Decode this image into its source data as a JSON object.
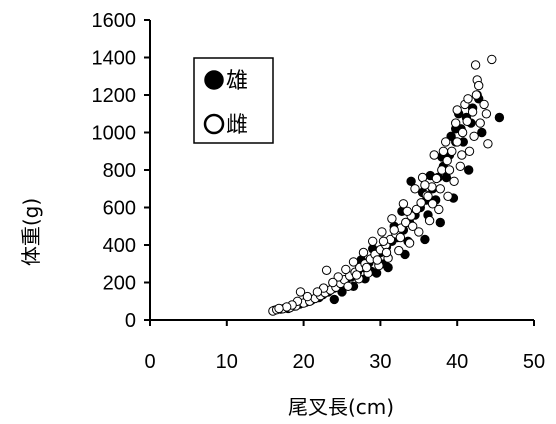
{
  "chart_data": {
    "type": "scatter",
    "xlabel": "尾叉長(cm)",
    "ylabel": "体重(g)",
    "xlim": [
      0,
      50
    ],
    "ylim": [
      0,
      1600
    ],
    "x_ticks": [
      0,
      10,
      20,
      30,
      40,
      50
    ],
    "y_ticks": [
      0,
      200,
      400,
      600,
      800,
      1000,
      1200,
      1400,
      1600
    ],
    "grid": false,
    "legend_position": "top-left",
    "series": [
      {
        "name": "雄",
        "marker": "filled-circle",
        "color": "#000000",
        "points": [
          [
            16.2,
            52
          ],
          [
            17.0,
            58
          ],
          [
            18.0,
            62
          ],
          [
            18.8,
            74
          ],
          [
            19.5,
            85
          ],
          [
            20.3,
            95
          ],
          [
            21.0,
            105
          ],
          [
            21.8,
            120
          ],
          [
            22.5,
            135
          ],
          [
            23.2,
            150
          ],
          [
            24.0,
            170
          ],
          [
            24.8,
            190
          ],
          [
            25.5,
            210
          ],
          [
            26.2,
            230
          ],
          [
            27.0,
            255
          ],
          [
            27.8,
            280
          ],
          [
            28.5,
            305
          ],
          [
            29.2,
            340
          ],
          [
            30.0,
            360
          ],
          [
            30.8,
            390
          ],
          [
            31.5,
            420
          ],
          [
            32.2,
            440
          ],
          [
            33.0,
            480
          ],
          [
            33.8,
            520
          ],
          [
            34.5,
            560
          ],
          [
            35.2,
            600
          ],
          [
            36.0,
            640
          ],
          [
            36.8,
            700
          ],
          [
            37.5,
            760
          ],
          [
            38.2,
            820
          ],
          [
            39.0,
            880
          ],
          [
            39.8,
            950
          ],
          [
            40.5,
            1020
          ],
          [
            41.2,
            1080
          ],
          [
            42.0,
            1130
          ],
          [
            42.8,
            1180
          ],
          [
            24.0,
            110
          ],
          [
            26.5,
            180
          ],
          [
            28.0,
            220
          ],
          [
            29.5,
            250
          ],
          [
            31.0,
            280
          ],
          [
            33.2,
            350
          ],
          [
            35.8,
            430
          ],
          [
            37.8,
            520
          ],
          [
            39.5,
            650
          ],
          [
            41.5,
            800
          ],
          [
            38.0,
            870
          ],
          [
            34.0,
            740
          ],
          [
            31.8,
            500
          ],
          [
            36.5,
            770
          ],
          [
            39.8,
            1020
          ],
          [
            43.2,
            1000
          ],
          [
            45.5,
            1080
          ],
          [
            40.2,
            1100
          ],
          [
            42.6,
            1200
          ],
          [
            29.0,
            380
          ],
          [
            27.5,
            320
          ],
          [
            32.8,
            580
          ],
          [
            35.5,
            680
          ],
          [
            37.2,
            640
          ],
          [
            40.8,
            950
          ],
          [
            38.6,
            760
          ],
          [
            30.5,
            300
          ],
          [
            25.0,
            150
          ],
          [
            22.0,
            120
          ],
          [
            41.8,
            1050
          ],
          [
            39.2,
            980
          ],
          [
            36.2,
            560
          ],
          [
            33.6,
            420
          ],
          [
            28.8,
            260
          ]
        ]
      },
      {
        "name": "雌",
        "marker": "open-circle",
        "color": "#000000",
        "points": [
          [
            16.0,
            48
          ],
          [
            16.5,
            55
          ],
          [
            17.3,
            60
          ],
          [
            18.2,
            65
          ],
          [
            19.0,
            75
          ],
          [
            19.6,
            150
          ],
          [
            20.0,
            90
          ],
          [
            20.8,
            100
          ],
          [
            21.5,
            115
          ],
          [
            22.2,
            130
          ],
          [
            22.8,
            145
          ],
          [
            23.0,
            265
          ],
          [
            23.5,
            160
          ],
          [
            24.2,
            175
          ],
          [
            24.8,
            195
          ],
          [
            25.3,
            215
          ],
          [
            26.0,
            235
          ],
          [
            26.7,
            255
          ],
          [
            27.3,
            280
          ],
          [
            28.0,
            300
          ],
          [
            28.7,
            325
          ],
          [
            29.3,
            350
          ],
          [
            30.0,
            375
          ],
          [
            30.7,
            400
          ],
          [
            31.3,
            430
          ],
          [
            32.0,
            460
          ],
          [
            32.7,
            490
          ],
          [
            33.3,
            520
          ],
          [
            34.0,
            555
          ],
          [
            34.7,
            590
          ],
          [
            35.3,
            625
          ],
          [
            36.0,
            665
          ],
          [
            36.7,
            710
          ],
          [
            37.3,
            755
          ],
          [
            38.0,
            800
          ],
          [
            38.7,
            850
          ],
          [
            39.3,
            900
          ],
          [
            40.0,
            950
          ],
          [
            40.7,
            1000
          ],
          [
            41.3,
            1060
          ],
          [
            42.0,
            1110
          ],
          [
            42.5,
            1200
          ],
          [
            42.6,
            1280
          ],
          [
            42.4,
            1360
          ],
          [
            44.5,
            1390
          ],
          [
            43.8,
            1100
          ],
          [
            44.0,
            940
          ],
          [
            41.0,
            1150
          ],
          [
            40.0,
            1120
          ],
          [
            38.5,
            950
          ],
          [
            37.0,
            880
          ],
          [
            35.5,
            760
          ],
          [
            34.5,
            700
          ],
          [
            33.0,
            620
          ],
          [
            31.5,
            540
          ],
          [
            30.2,
            470
          ],
          [
            29.0,
            420
          ],
          [
            27.8,
            360
          ],
          [
            26.5,
            310
          ],
          [
            25.5,
            270
          ],
          [
            24.5,
            230
          ],
          [
            23.8,
            200
          ],
          [
            22.6,
            170
          ],
          [
            21.8,
            150
          ],
          [
            20.5,
            125
          ],
          [
            19.2,
            100
          ],
          [
            18.5,
            80
          ],
          [
            17.8,
            70
          ],
          [
            16.8,
            62
          ],
          [
            25.8,
            180
          ],
          [
            27.2,
            220
          ],
          [
            28.4,
            250
          ],
          [
            29.8,
            290
          ],
          [
            31.0,
            330
          ],
          [
            32.4,
            370
          ],
          [
            33.8,
            410
          ],
          [
            35.0,
            470
          ],
          [
            36.4,
            530
          ],
          [
            37.6,
            590
          ],
          [
            38.8,
            660
          ],
          [
            39.6,
            740
          ],
          [
            40.4,
            820
          ],
          [
            41.6,
            900
          ],
          [
            42.2,
            980
          ],
          [
            43.0,
            1050
          ],
          [
            37.8,
            700
          ],
          [
            36.8,
            620
          ],
          [
            34.2,
            500
          ],
          [
            32.6,
            440
          ],
          [
            30.8,
            360
          ],
          [
            29.6,
            320
          ],
          [
            28.2,
            280
          ],
          [
            26.9,
            240
          ],
          [
            41.4,
            1180
          ],
          [
            39.8,
            1050
          ],
          [
            38.2,
            900
          ],
          [
            35.8,
            720
          ],
          [
            33.5,
            580
          ],
          [
            31.8,
            480
          ],
          [
            30.4,
            420
          ],
          [
            42.8,
            1250
          ],
          [
            43.5,
            1150
          ],
          [
            40.6,
            880
          ],
          [
            39.0,
            800
          ],
          [
            36.2,
            660
          ]
        ]
      }
    ]
  }
}
